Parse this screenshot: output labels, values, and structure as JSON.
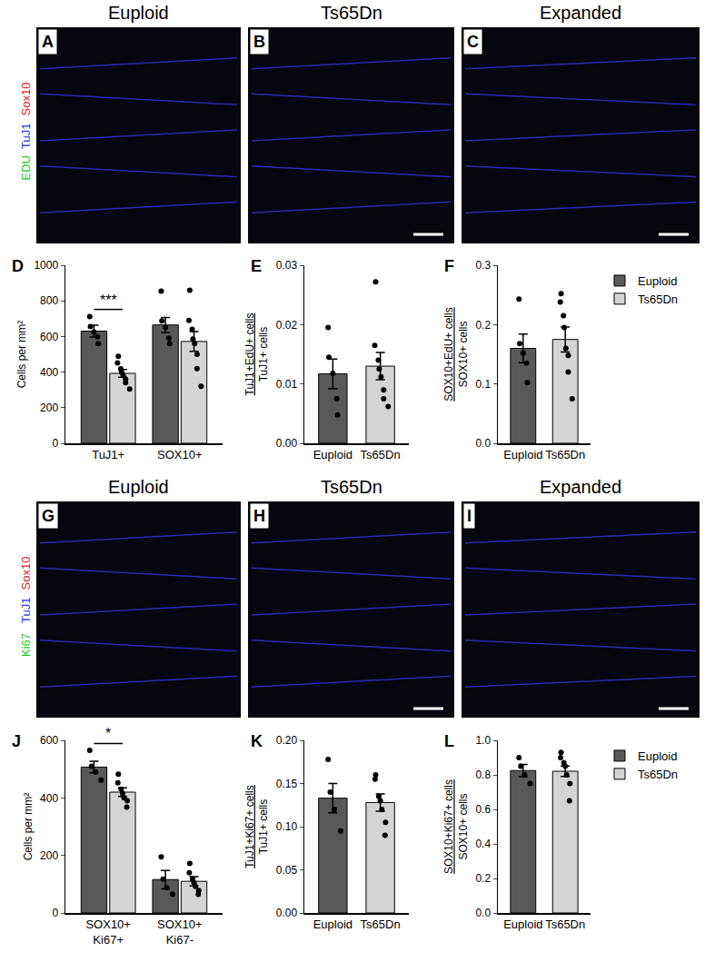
{
  "image_panels": [
    {
      "letter": "A",
      "title": "Euploid",
      "stains": [
        {
          "text": "Sox10",
          "color": "#e8202a"
        },
        {
          "text": "TuJ1",
          "color": "#3030ff"
        },
        {
          "text": "EDU",
          "color": "#22cc22"
        }
      ]
    },
    {
      "letter": "B",
      "title": "Ts65Dn"
    },
    {
      "letter": "C",
      "title": "Expanded"
    },
    {
      "letter": "G",
      "title": "Euploid",
      "stains": [
        {
          "text": "Sox10",
          "color": "#e8202a"
        },
        {
          "text": "TuJ1",
          "color": "#3030ff"
        },
        {
          "text": "Ki67",
          "color": "#22cc22"
        }
      ]
    },
    {
      "letter": "H",
      "title": "Ts65Dn"
    },
    {
      "letter": "I",
      "title": "Expanded"
    }
  ],
  "chart_data": [
    {
      "letter": "D",
      "type": "bar",
      "ylabel": "Cells per mm²",
      "ylim": [
        0,
        1000
      ],
      "yticks": [
        0,
        200,
        400,
        600,
        800,
        1000
      ],
      "categories": [
        "TuJ1+",
        "SOX10+"
      ],
      "series": [
        {
          "name": "Euploid",
          "color": "#595959",
          "values": [
            630,
            665
          ],
          "errors": [
            33,
            42
          ],
          "points": [
            [
              712,
              655,
              625,
              598,
              560
            ],
            [
              855,
              688,
              650,
              590,
              560
            ]
          ]
        },
        {
          "name": "Ts65Dn",
          "color": "#d4d4d4",
          "values": [
            393,
            572
          ],
          "errors": [
            22,
            55
          ],
          "points": [
            [
              488,
              452,
              418,
              400,
              382,
              360,
              340,
              305
            ],
            [
              860,
              690,
              640,
              585,
              560,
              500,
              420,
              320
            ]
          ]
        }
      ],
      "significance": [
        {
          "category": "TuJ1+",
          "text": "***"
        }
      ]
    },
    {
      "letter": "E",
      "type": "bar",
      "ylabel": [
        "TuJ1+EdU+ cells",
        "TuJ1+ cells"
      ],
      "ylim": [
        0,
        0.03
      ],
      "yticks": [
        {
          "value": 0,
          "label": "0.00"
        },
        0.01,
        0.02,
        0.03
      ],
      "categories": [
        "Euploid",
        "Ts65Dn"
      ],
      "colors": [
        "#595959",
        "#d4d4d4"
      ],
      "values": [
        0.0117,
        0.013
      ],
      "errors": [
        0.0025,
        0.0023
      ],
      "points": [
        [
          0.0195,
          0.0145,
          0.0118,
          0.0075,
          0.0048
        ],
        [
          0.0272,
          0.0165,
          0.014,
          0.0125,
          0.0112,
          0.009,
          0.0075,
          0.0062
        ]
      ]
    },
    {
      "letter": "F",
      "type": "bar",
      "ylabel": [
        "SOX10+EdU+ cells",
        "SOX10+ cells"
      ],
      "ylim": [
        0,
        0.3
      ],
      "yticks": [
        {
          "value": 0,
          "label": "0.0"
        },
        0.1,
        0.2,
        0.3
      ],
      "categories": [
        "Euploid",
        "Ts65Dn"
      ],
      "colors": [
        "#595959",
        "#d4d4d4"
      ],
      "values": [
        0.16,
        0.175
      ],
      "errors": [
        0.024,
        0.021
      ],
      "points": [
        [
          0.243,
          0.168,
          0.152,
          0.135,
          0.102
        ],
        [
          0.252,
          0.238,
          0.215,
          0.195,
          0.16,
          0.148,
          0.12,
          0.075
        ]
      ],
      "legend": "right"
    },
    {
      "letter": "J",
      "type": "bar",
      "ylabel": "Cells per mm²",
      "ylim": [
        0,
        600
      ],
      "yticks": [
        0,
        200,
        400,
        600
      ],
      "categories": [
        "SOX10+\nKi67+",
        "SOX10+\nKi67-"
      ],
      "series": [
        {
          "name": "Euploid",
          "color": "#595959",
          "values": [
            507,
            116
          ],
          "errors": [
            20,
            32
          ],
          "points": [
            [
              565,
              510,
              490,
              462
            ],
            [
              195,
              118,
              88,
              65
            ]
          ]
        },
        {
          "name": "Ts65Dn",
          "color": "#d4d4d4",
          "values": [
            420,
            110
          ],
          "errors": [
            15,
            16
          ],
          "points": [
            [
              482,
              452,
              430,
              415,
              400,
              390,
              368
            ],
            [
              172,
              140,
              118,
              105,
              92,
              78,
              65
            ]
          ]
        }
      ],
      "significance": [
        {
          "category": "SOX10+\nKi67+",
          "text": "*"
        }
      ]
    },
    {
      "letter": "K",
      "type": "bar",
      "ylabel": [
        "TuJ1+Ki67+ cells",
        "TuJ1+ cells"
      ],
      "ylim": [
        0,
        0.2
      ],
      "yticks": [
        {
          "value": 0,
          "label": "0.00"
        },
        0.05,
        {
          "value": 0.1,
          "label": "0.10"
        },
        0.15,
        {
          "value": 0.2,
          "label": "0.20"
        }
      ],
      "categories": [
        "Euploid",
        "Ts65Dn"
      ],
      "colors": [
        "#595959",
        "#d4d4d4"
      ],
      "values": [
        0.133,
        0.128
      ],
      "errors": [
        0.017,
        0.01
      ],
      "points": [
        [
          0.178,
          0.14,
          0.12,
          0.095
        ],
        [
          0.16,
          0.155,
          0.135,
          0.13,
          0.12,
          0.105,
          0.09
        ]
      ]
    },
    {
      "letter": "L",
      "type": "bar",
      "ylabel": [
        "SOX10+Ki67+ cells",
        "SOX10+ cells"
      ],
      "ylim": [
        0,
        1
      ],
      "yticks": [
        {
          "value": 0,
          "label": "0.0"
        },
        0.2,
        0.4,
        0.6,
        0.8,
        {
          "value": 1,
          "label": "1.0"
        }
      ],
      "categories": [
        "Euploid",
        "Ts65Dn"
      ],
      "colors": [
        "#595959",
        "#d4d4d4"
      ],
      "values": [
        0.825,
        0.821
      ],
      "errors": [
        0.035,
        0.03
      ],
      "points": [
        [
          0.9,
          0.85,
          0.8,
          0.75
        ],
        [
          0.93,
          0.9,
          0.87,
          0.85,
          0.8,
          0.75,
          0.65
        ]
      ],
      "legend": "right"
    }
  ]
}
